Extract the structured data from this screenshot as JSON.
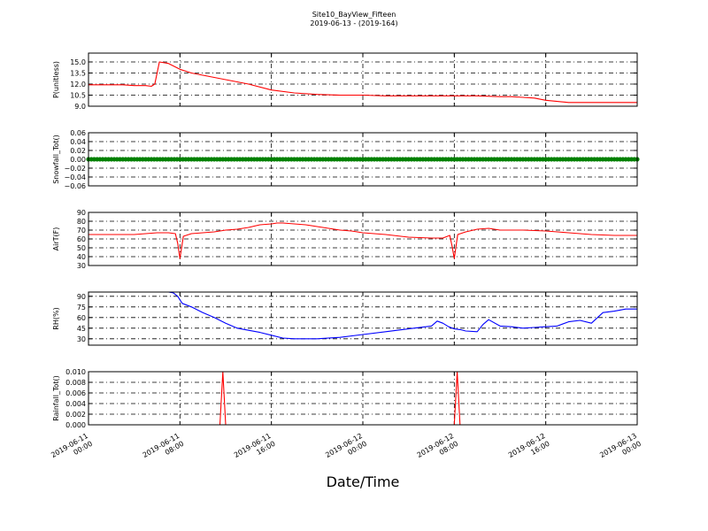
{
  "figure": {
    "title": "Site10_BayView_Fifteen",
    "subtitle": "2019-06-13 - (2019-164)",
    "xlabel": "Date/Time"
  },
  "chart_data": [
    {
      "type": "line",
      "ylabel": "P(unitless)",
      "ylim": [
        9.0,
        16.2
      ],
      "yticks": [
        "9.0",
        "10.5",
        "12.0",
        "13.5",
        "15.0"
      ],
      "xlim": [
        0,
        48
      ],
      "xticks": [
        [
          "2019-06-11",
          "00:00"
        ],
        [
          "2019-06-11",
          "08:00"
        ],
        [
          "2019-06-11",
          "16:00"
        ],
        [
          "2019-06-12",
          "00:00"
        ],
        [
          "2019-06-12",
          "08:00"
        ],
        [
          "2019-06-12",
          "16:00"
        ],
        [
          "2019-06-13",
          "00:00"
        ]
      ],
      "grid": true,
      "series": [
        {
          "color": "#ff0000",
          "x": [
            0,
            1,
            2,
            3,
            4,
            5,
            5.5,
            5.8,
            6.2,
            7,
            8,
            9,
            10,
            11,
            12,
            13,
            14,
            16,
            18,
            20,
            22,
            24,
            26,
            28,
            30,
            32,
            34,
            36,
            37,
            38,
            39,
            40,
            42,
            44,
            46,
            48
          ],
          "y": [
            11.9,
            11.9,
            11.9,
            11.9,
            11.8,
            11.8,
            11.7,
            12.0,
            15.0,
            14.8,
            14.0,
            13.5,
            13.2,
            12.9,
            12.6,
            12.3,
            12.0,
            11.2,
            10.8,
            10.6,
            10.5,
            10.5,
            10.4,
            10.4,
            10.4,
            10.4,
            10.4,
            10.3,
            10.3,
            10.2,
            10.1,
            9.8,
            9.5,
            9.5,
            9.5,
            9.5
          ]
        }
      ]
    },
    {
      "type": "scatter",
      "ylabel": "Snowfall_Tot()",
      "ylim": [
        -0.06,
        0.06
      ],
      "yticks": [
        "−0.06",
        "−0.04",
        "−0.02",
        "0.00",
        "0.02",
        "0.04",
        "0.06"
      ],
      "xlim": [
        0,
        48
      ],
      "grid": true,
      "series": [
        {
          "color": "#008000",
          "marker": "circle",
          "constant": 0.0,
          "x_step": 0.25
        }
      ]
    },
    {
      "type": "line",
      "ylabel": "AirT(F)",
      "ylim": [
        30,
        90
      ],
      "yticks": [
        "30",
        "40",
        "50",
        "60",
        "70",
        "80",
        "90"
      ],
      "xlim": [
        0,
        48
      ],
      "grid": true,
      "series": [
        {
          "color": "#ff0000",
          "x": [
            0,
            2,
            4,
            5,
            6,
            7,
            7.6,
            7.8,
            8.0,
            8.3,
            9,
            10,
            11,
            12,
            13,
            14,
            15,
            16,
            16.5,
            17,
            18,
            19,
            20,
            21,
            22,
            23,
            24,
            26,
            28,
            30,
            31,
            31.6,
            31.8,
            32.0,
            32.3,
            33,
            34,
            35,
            36,
            38,
            40,
            42,
            44,
            46,
            48
          ],
          "y": [
            65,
            65,
            65,
            66,
            67,
            67,
            66,
            55,
            38,
            63,
            66,
            67,
            68,
            70,
            71,
            73,
            76,
            77,
            78,
            78,
            77,
            76,
            74,
            72,
            70,
            69,
            67,
            65,
            62,
            61,
            61,
            64,
            52,
            38,
            65,
            68,
            71,
            72,
            70,
            70,
            69,
            67,
            65,
            64,
            64
          ]
        }
      ]
    },
    {
      "type": "line",
      "ylabel": "RH(%)",
      "ylim": [
        21,
        96
      ],
      "yticks": [
        "30",
        "45",
        "60",
        "75",
        "90"
      ],
      "xlim": [
        0,
        48
      ],
      "grid": true,
      "series": [
        {
          "color": "#0000ff",
          "x": [
            7.0,
            7.4,
            7.8,
            8.2,
            9,
            10,
            11,
            12,
            13,
            14,
            15,
            16,
            17,
            18,
            20,
            22,
            24,
            26,
            28,
            30,
            30.5,
            31,
            31.5,
            32,
            32.5,
            33,
            34,
            34.5,
            35,
            36,
            37,
            38,
            39,
            40,
            41,
            42,
            43,
            44,
            45,
            46,
            47,
            48
          ],
          "y": [
            96,
            95,
            90,
            80,
            75,
            67,
            60,
            52,
            45,
            42,
            39,
            35,
            31,
            30,
            30,
            32,
            36,
            40,
            44,
            48,
            55,
            52,
            47,
            44,
            43,
            41,
            40,
            50,
            57,
            48,
            47,
            45,
            46,
            47,
            48,
            54,
            56,
            52,
            67,
            69,
            72,
            72
          ]
        }
      ]
    },
    {
      "type": "line",
      "ylabel": "Rainfall_Tot()",
      "ylim": [
        0.0,
        0.01
      ],
      "yticks": [
        "0.000",
        "0.002",
        "0.004",
        "0.006",
        "0.008",
        "0.010"
      ],
      "xlim": [
        0,
        48
      ],
      "xticks": [
        [
          "2019-06-11",
          "00:00"
        ],
        [
          "2019-06-11",
          "08:00"
        ],
        [
          "2019-06-11",
          "16:00"
        ],
        [
          "2019-06-12",
          "00:00"
        ],
        [
          "2019-06-12",
          "08:00"
        ],
        [
          "2019-06-12",
          "16:00"
        ],
        [
          "2019-06-13",
          "00:00"
        ]
      ],
      "grid": true,
      "series": [
        {
          "color": "#ff0000",
          "x": [
            0,
            11.5,
            11.75,
            12.0,
            32.0,
            32.25,
            32.5,
            48
          ],
          "y": [
            0,
            0,
            0.01,
            0,
            0,
            0.01,
            0,
            0
          ]
        }
      ]
    }
  ]
}
